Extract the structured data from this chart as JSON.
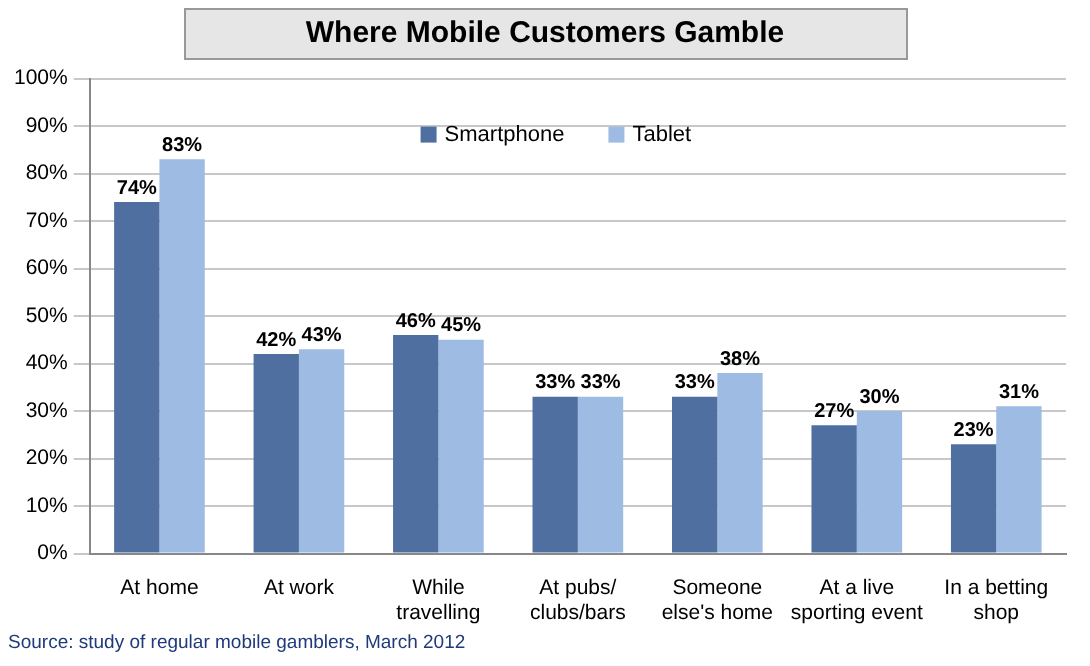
{
  "chart_data": {
    "type": "bar",
    "title": "Where Mobile Customers Gamble",
    "categories": [
      "At home",
      "At work",
      "While\ntravelling",
      "At pubs/\nclubs/bars",
      "Someone\nelse's home",
      "At a live\nsporting event",
      "In a betting\nshop"
    ],
    "series": [
      {
        "name": "Smartphone",
        "color": "#4f6fa0",
        "values": [
          74,
          42,
          46,
          33,
          33,
          27,
          23
        ],
        "value_labels": [
          "74%",
          "42%",
          "46%",
          "33%",
          "33%",
          "27%",
          "23%"
        ]
      },
      {
        "name": "Tablet",
        "color": "#9dbbe3",
        "values": [
          83,
          43,
          45,
          33,
          38,
          30,
          31
        ],
        "value_labels": [
          "83%",
          "43%",
          "45%",
          "33%",
          "38%",
          "30%",
          "31%"
        ]
      }
    ],
    "ylim": [
      0,
      100
    ],
    "yticks": [
      {
        "value": 0,
        "label": "0%"
      },
      {
        "value": 10,
        "label": "10%"
      },
      {
        "value": 20,
        "label": "20%"
      },
      {
        "value": 30,
        "label": "30%"
      },
      {
        "value": 40,
        "label": "40%"
      },
      {
        "value": 50,
        "label": "50%"
      },
      {
        "value": 60,
        "label": "60%"
      },
      {
        "value": 70,
        "label": "70%"
      },
      {
        "value": 80,
        "label": "80%"
      },
      {
        "value": 90,
        "label": "90%"
      },
      {
        "value": 100,
        "label": "100%"
      }
    ],
    "grid": "y",
    "legend": "top",
    "annotations": [
      "Source: study of regular mobile gamblers, March 2012"
    ]
  }
}
